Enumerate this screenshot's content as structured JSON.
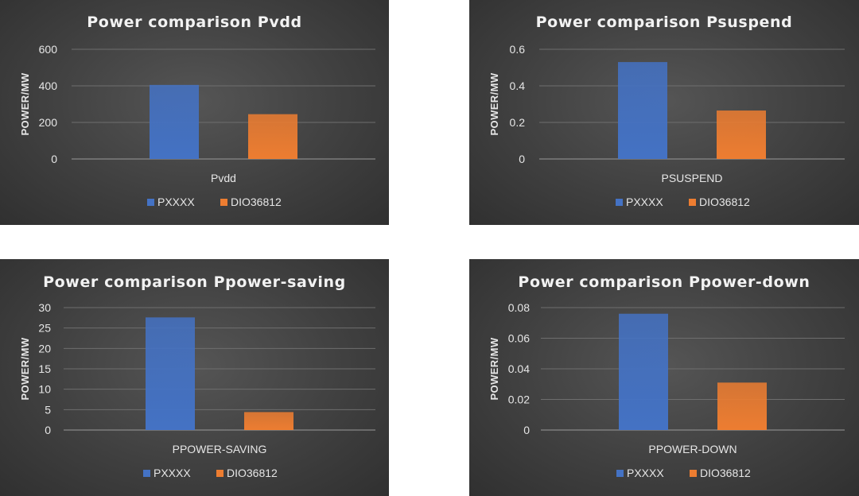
{
  "colors": {
    "pxxxx": "#4472c4",
    "dio": "#ed7d31",
    "grid": "#6e6e6e",
    "axis": "#9a9a9a"
  },
  "chart_data": [
    {
      "type": "bar",
      "title": "Power comparison Pvdd",
      "ylabel": "POWER/MW",
      "categories": [
        "Pvdd"
      ],
      "series": [
        {
          "name": "PXXXX",
          "values": [
            405
          ]
        },
        {
          "name": "DIO36812",
          "values": [
            245
          ]
        }
      ],
      "ylim": [
        0,
        600
      ],
      "yticks": [
        "0",
        "200",
        "400",
        "600"
      ],
      "grid": true,
      "legend": "bottom"
    },
    {
      "type": "bar",
      "title": "Power comparison Psuspend",
      "ylabel": "POWER/MW",
      "categories": [
        "PSUSPEND"
      ],
      "series": [
        {
          "name": "PXXXX",
          "values": [
            0.53
          ]
        },
        {
          "name": "DIO36812",
          "values": [
            0.265
          ]
        }
      ],
      "ylim": [
        0,
        0.6
      ],
      "yticks": [
        "0",
        "0.2",
        "0.4",
        "0.6"
      ],
      "grid": true,
      "legend": "bottom"
    },
    {
      "type": "bar",
      "title": "Power comparison Ppower-saving",
      "ylabel": "POWER/MW",
      "categories": [
        "PPOWER-SAVING"
      ],
      "series": [
        {
          "name": "PXXXX",
          "values": [
            27.6
          ]
        },
        {
          "name": "DIO36812",
          "values": [
            4.4
          ]
        }
      ],
      "ylim": [
        0,
        30
      ],
      "yticks": [
        "0",
        "5",
        "10",
        "15",
        "20",
        "25",
        "30"
      ],
      "grid": true,
      "legend": "bottom"
    },
    {
      "type": "bar",
      "title": "Power comparison Ppower-down",
      "ylabel": "POWER/MW",
      "categories": [
        "PPOWER-DOWN"
      ],
      "series": [
        {
          "name": "PXXXX",
          "values": [
            0.076
          ]
        },
        {
          "name": "DIO36812",
          "values": [
            0.031
          ]
        }
      ],
      "ylim": [
        0,
        0.08
      ],
      "yticks": [
        "0",
        "0.02",
        "0.04",
        "0.06",
        "0.08"
      ],
      "grid": true,
      "legend": "bottom"
    }
  ]
}
